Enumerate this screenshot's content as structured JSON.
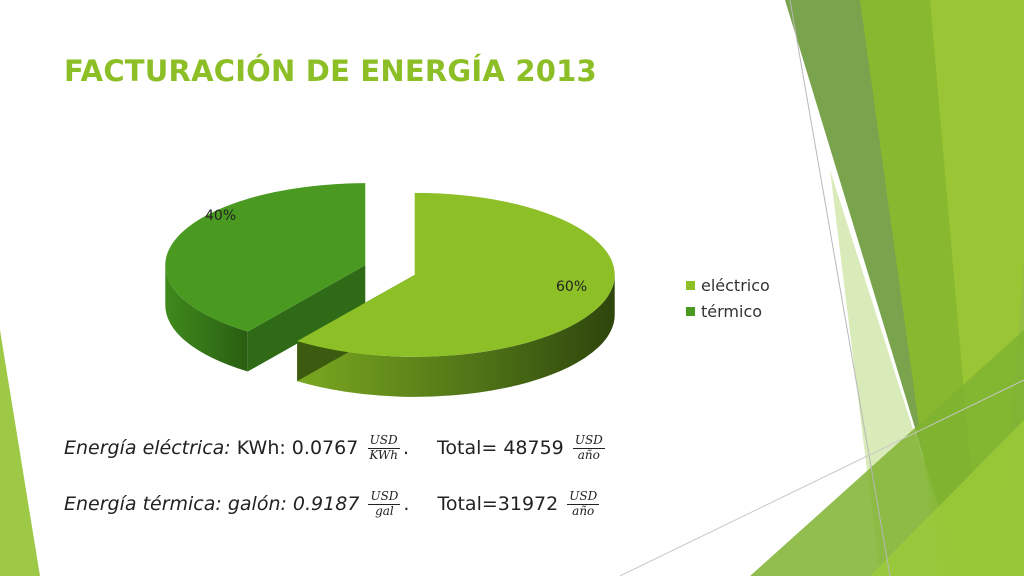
{
  "title": "FACTURACIÓN DE ENERGÍA 2013",
  "chart_data": {
    "type": "pie",
    "categories": [
      "eléctrico",
      "térmico"
    ],
    "values": [
      60,
      40
    ],
    "labels": [
      "60%",
      "40%"
    ],
    "colors": [
      "#8dbf26",
      "#4a9a22"
    ],
    "legend_position": "right"
  },
  "formulas": {
    "line1": {
      "italic_label": "Energía eléctrica:",
      "text": " KWh: 0.0767 ",
      "frac1_num": "USD",
      "frac1_den": "KWh",
      "after1": ".",
      "total_text": "Total= 48759 ",
      "frac2_num": "USD",
      "frac2_den": "año"
    },
    "line2": {
      "italic_label": "Energía térmica: galón: 0.9187 ",
      "frac1_num": "USD",
      "frac1_den": "gal",
      "after1": ".",
      "total_text": "Total=31972 ",
      "frac2_num": "USD",
      "frac2_den": "año"
    }
  }
}
